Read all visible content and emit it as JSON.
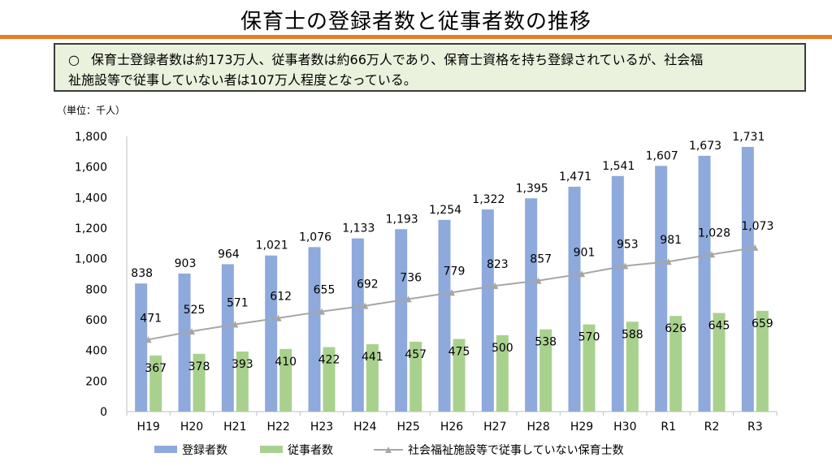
{
  "header": {
    "title": "保育士の登録者数と従事者数の推移"
  },
  "summary": {
    "bullet": "○",
    "line1": "保育士登録者数は約173万人、従事者数は約66万人であり、保育士資格を持ち登録されているが、社会福",
    "line2": "祉施設等で従事していない者は107万人程度となっている。"
  },
  "colors": {
    "registered": "#8ea9db",
    "employed": "#a9d18e",
    "not_employed_line": "#a6a6a6",
    "accent_rule": "#e67e22"
  },
  "chart_data": {
    "type": "bar",
    "unit_label": "（単位：千人）",
    "categories": [
      "H19",
      "H20",
      "H21",
      "H22",
      "H23",
      "H24",
      "H25",
      "H26",
      "H27",
      "H28",
      "H29",
      "H30",
      "R1",
      "R2",
      "R3"
    ],
    "series": [
      {
        "name": "登録者数",
        "kind": "bar",
        "values": [
          838,
          903,
          964,
          1021,
          1076,
          1133,
          1193,
          1254,
          1322,
          1395,
          1471,
          1541,
          1607,
          1673,
          1731
        ],
        "labels": [
          "838",
          "903",
          "964",
          "1,021",
          "1,076",
          "1,133",
          "1,193",
          "1,254",
          "1,322",
          "1,395",
          "1,471",
          "1,541",
          "1,607",
          "1,673",
          "1,731"
        ]
      },
      {
        "name": "従事者数",
        "kind": "bar",
        "values": [
          367,
          378,
          393,
          410,
          422,
          441,
          457,
          475,
          500,
          538,
          570,
          588,
          626,
          645,
          659
        ],
        "labels": [
          "367",
          "378",
          "393",
          "410",
          "422",
          "441",
          "457",
          "475",
          "500",
          "538",
          "570",
          "588",
          "626",
          "645",
          "659"
        ]
      },
      {
        "name": "社会福祉施設等で従事していない保育士数",
        "kind": "line",
        "values": [
          471,
          525,
          571,
          612,
          655,
          692,
          736,
          779,
          823,
          857,
          901,
          953,
          981,
          1028,
          1073
        ],
        "labels": [
          "471",
          "525",
          "571",
          "612",
          "655",
          "692",
          "736",
          "779",
          "823",
          "857",
          "901",
          "953",
          "981",
          "1,028",
          "1,073"
        ]
      }
    ],
    "ylim": [
      0,
      1800
    ],
    "yticks": [
      0,
      200,
      400,
      600,
      800,
      1000,
      1200,
      1400,
      1600,
      1800
    ],
    "ytick_labels": [
      "0",
      "200",
      "400",
      "600",
      "800",
      "1,000",
      "1,200",
      "1,400",
      "1,600",
      "1,800"
    ],
    "grid": false,
    "legend_position": "bottom"
  }
}
